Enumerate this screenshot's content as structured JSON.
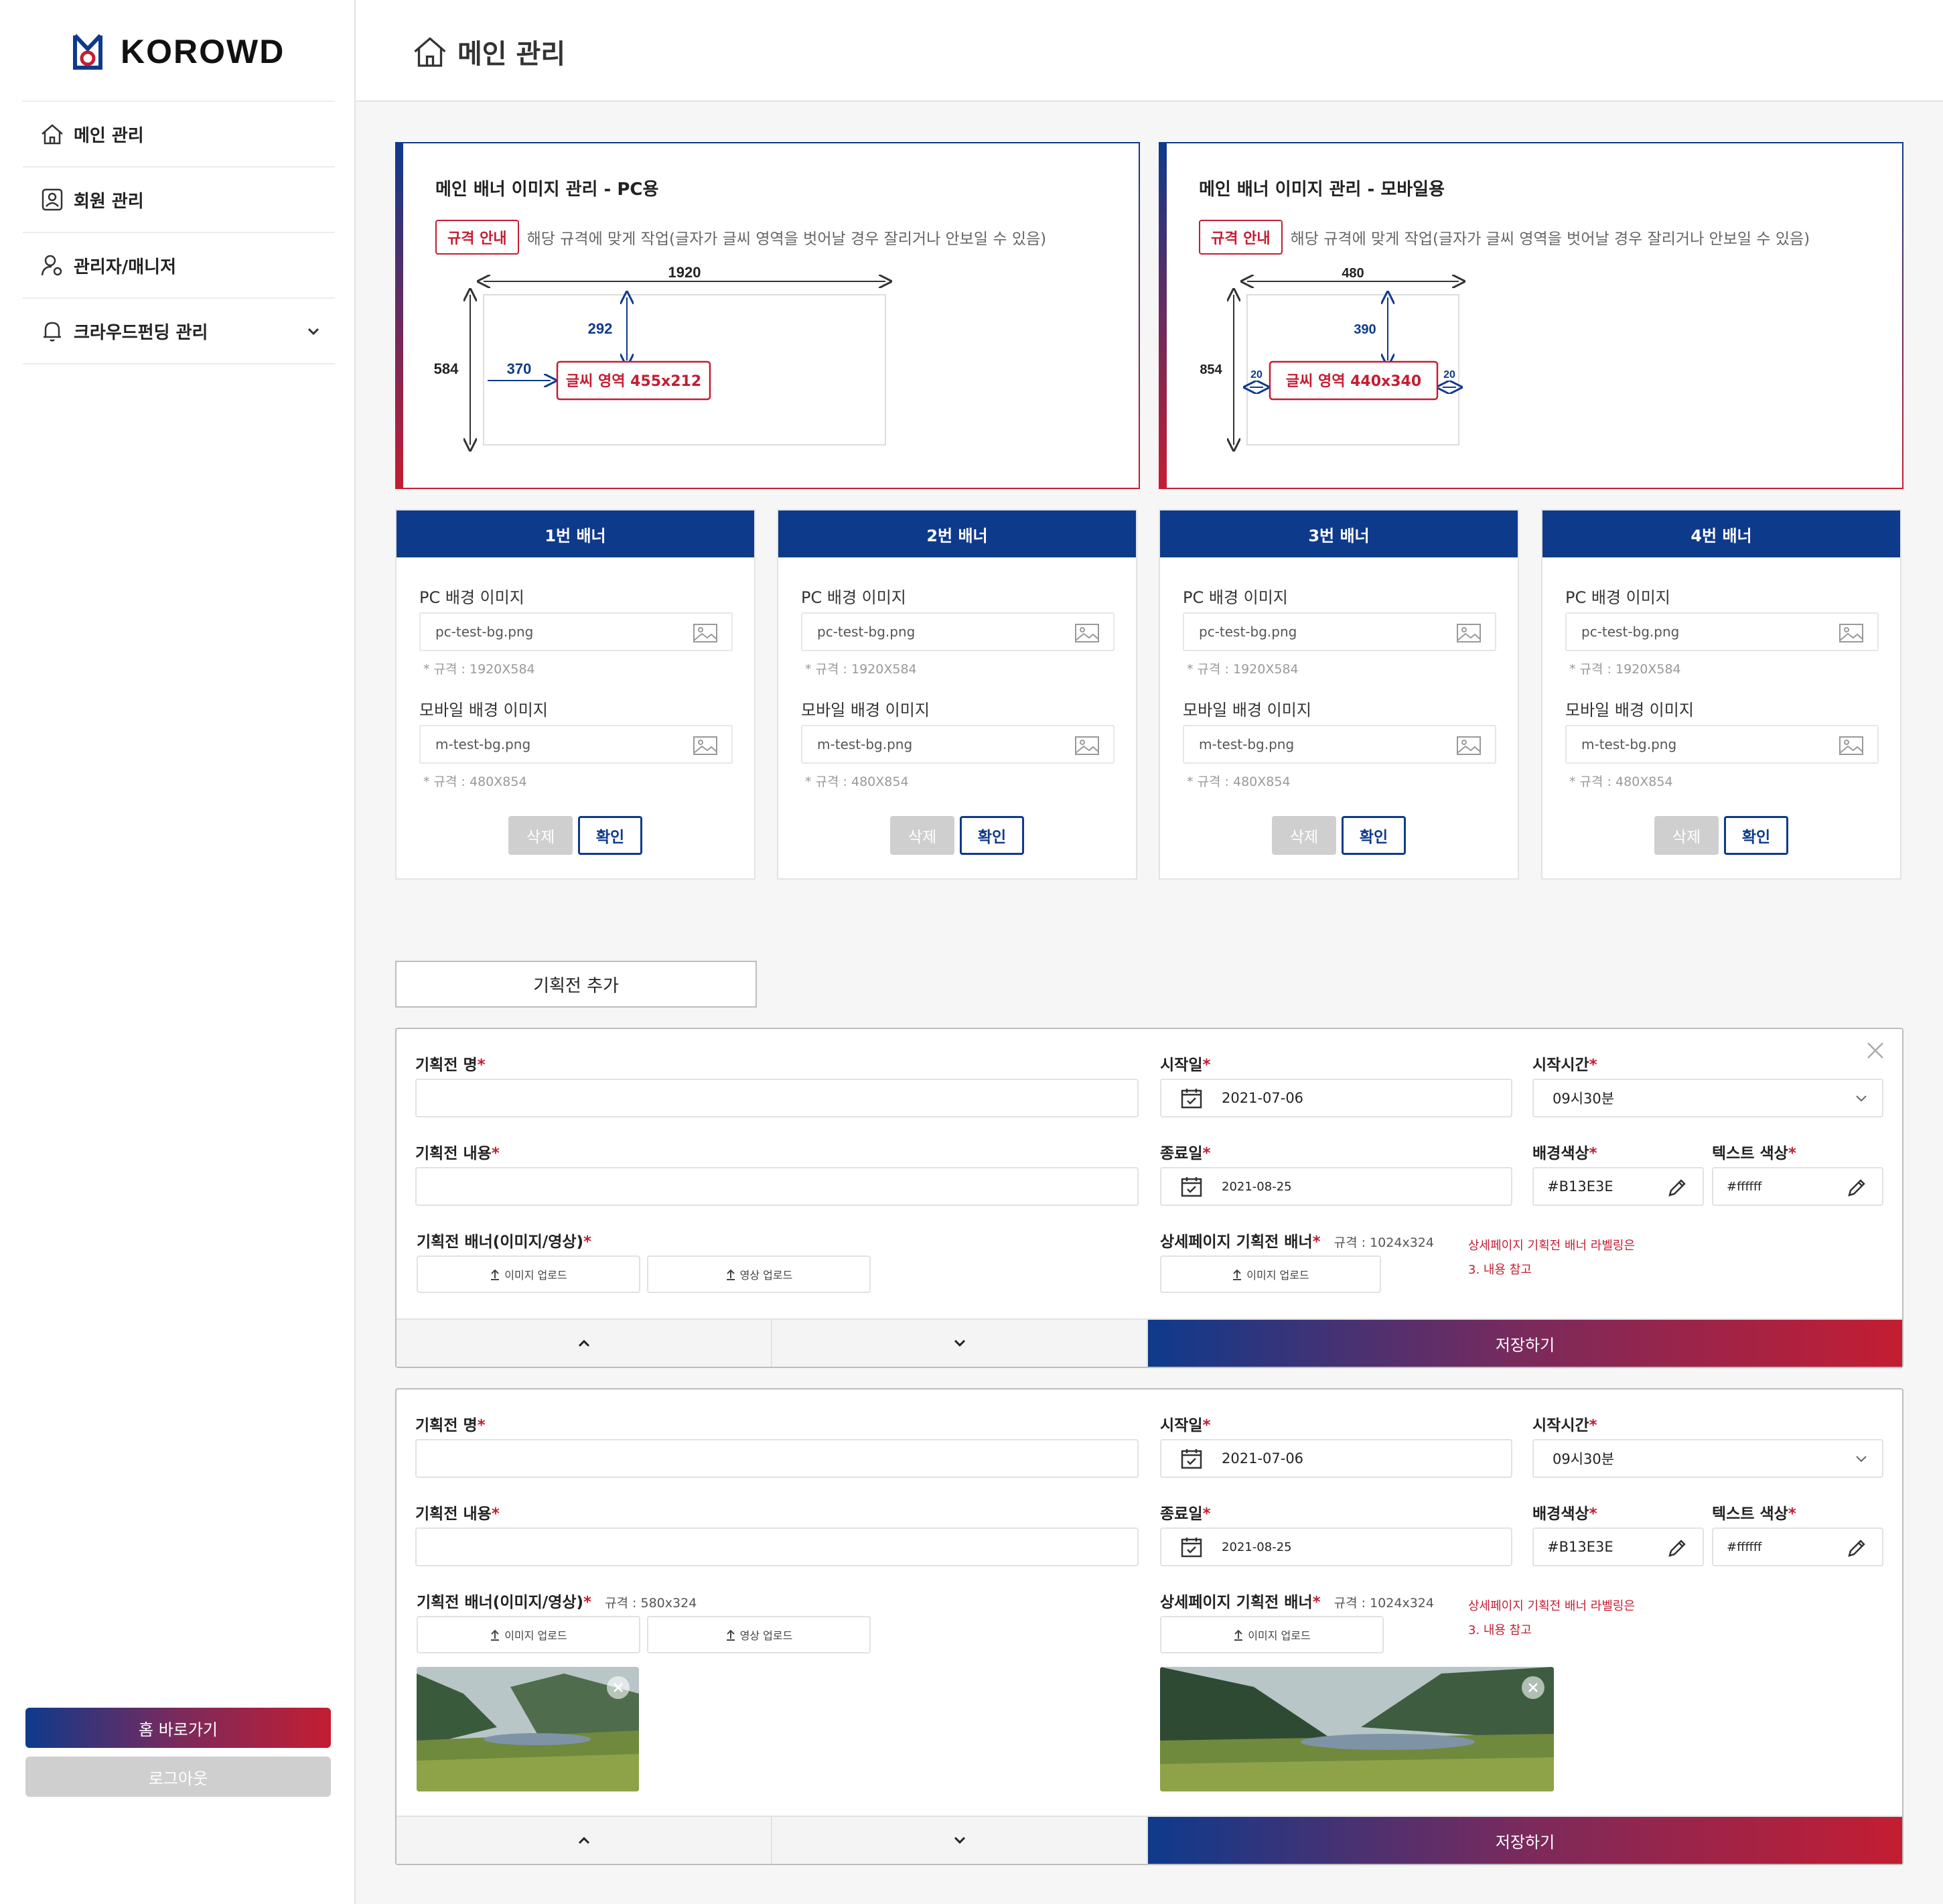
{
  "brand": {
    "name": "KOROWD",
    "gradient_start": "#0e3a8c",
    "gradient_end": "#c41d32"
  },
  "sidebar": {
    "items": [
      {
        "label": "메인 관리",
        "icon": "home-icon"
      },
      {
        "label": "회원 관리",
        "icon": "user-card-icon"
      },
      {
        "label": "관리자/매니저",
        "icon": "user-gear-icon"
      },
      {
        "label": "크라우드펀딩 관리",
        "icon": "bell-icon"
      }
    ],
    "home_button": "홈 바로가기",
    "logout_button": "로그아웃"
  },
  "header": {
    "title": "메인 관리"
  },
  "spec_cards": [
    {
      "title": "메인 배너 이미지 관리 - PC용",
      "badge": "규격 안내",
      "desc": "해당 규격에 맞게 작업(글자가 글씨 영역을 벗어날 경우 잘리거나 안보일 수 있음)",
      "width": "1920",
      "height": "584",
      "top_offset": "292",
      "left_offset": "370",
      "text_area": "글씨 영역 455x212"
    },
    {
      "title": "메인 배너 이미지 관리 - 모바일용",
      "badge": "규격 안내",
      "desc": "해당 규격에 맞게 작업(글자가 글씨 영역을 벗어날 경우 잘리거나 안보일 수 있음)",
      "width": "480",
      "height": "854",
      "top_offset": "390",
      "side_left": "20",
      "side_right": "20",
      "text_area": "글씨 영역 440x340"
    }
  ],
  "banners": [
    {
      "title": "1번 배너",
      "pc_label": "PC 배경 이미지",
      "pc_file": "pc-test-bg.png",
      "pc_note": "* 규격 : 1920X584",
      "m_label": "모바일 배경 이미지",
      "m_file": "m-test-bg.png",
      "m_note": "* 규격 : 480X854",
      "delete": "삭제",
      "confirm": "확인"
    },
    {
      "title": "2번 배너",
      "pc_label": "PC 배경 이미지",
      "pc_file": "pc-test-bg.png",
      "pc_note": "* 규격 : 1920X584",
      "m_label": "모바일 배경 이미지",
      "m_file": "m-test-bg.png",
      "m_note": "* 규격 : 480X854",
      "delete": "삭제",
      "confirm": "확인"
    },
    {
      "title": "3번 배너",
      "pc_label": "PC 배경 이미지",
      "pc_file": "pc-test-bg.png",
      "pc_note": "* 규격 : 1920X584",
      "m_label": "모바일 배경 이미지",
      "m_file": "m-test-bg.png",
      "m_note": "* 규격 : 480X854",
      "delete": "삭제",
      "confirm": "확인"
    },
    {
      "title": "4번 배너",
      "pc_label": "PC 배경 이미지",
      "pc_file": "pc-test-bg.png",
      "pc_note": "* 규격 : 1920X584",
      "m_label": "모바일 배경 이미지",
      "m_file": "m-test-bg.png",
      "m_note": "* 규격 : 480X854",
      "delete": "삭제",
      "confirm": "확인"
    }
  ],
  "add_exhibition": "기획전 추가",
  "forms": [
    {
      "name_label": "기획전 명",
      "name_value": "",
      "content_label": "기획전 내용",
      "content_value": "",
      "banner_label": "기획전 배너(이미지/영상)",
      "banner_spec": "",
      "start_date_label": "시작일",
      "start_date": "2021-07-06",
      "end_date_label": "종료일",
      "end_date": "2021-08-25",
      "start_time_label": "시작시간",
      "start_time": "09시30분",
      "bg_color_label": "배경색상",
      "bg_color": "#B13E3E",
      "text_color_label": "텍스트 색상",
      "text_color": "#ffffff",
      "detail_banner_label": "상세페이지 기획전 배너",
      "detail_spec": "규격 : 1024x324",
      "image_upload": "이미지 업로드",
      "video_upload": "영상 업로드",
      "note_line1": "상세페이지 기획전 배너 라벨링은",
      "note_line2": "3. 내용 참고",
      "save": "저장하기",
      "required": "*"
    },
    {
      "name_label": "기획전 명",
      "name_value": "",
      "content_label": "기획전 내용",
      "content_value": "",
      "banner_label": "기획전 배너(이미지/영상)",
      "banner_spec": "규격 : 580x324",
      "start_date_label": "시작일",
      "start_date": "2021-07-06",
      "end_date_label": "종료일",
      "end_date": "2021-08-25",
      "start_time_label": "시작시간",
      "start_time": "09시30분",
      "bg_color_label": "배경색상",
      "bg_color": "#B13E3E",
      "text_color_label": "텍스트 색상",
      "text_color": "#ffffff",
      "detail_banner_label": "상세페이지 기획전 배너",
      "detail_spec": "규격 : 1024x324",
      "image_upload": "이미지 업로드",
      "video_upload": "영상 업로드",
      "note_line1": "상세페이지 기획전 배너 라벨링은",
      "note_line2": "3. 내용 참고",
      "save": "저장하기",
      "required": "*"
    }
  ]
}
